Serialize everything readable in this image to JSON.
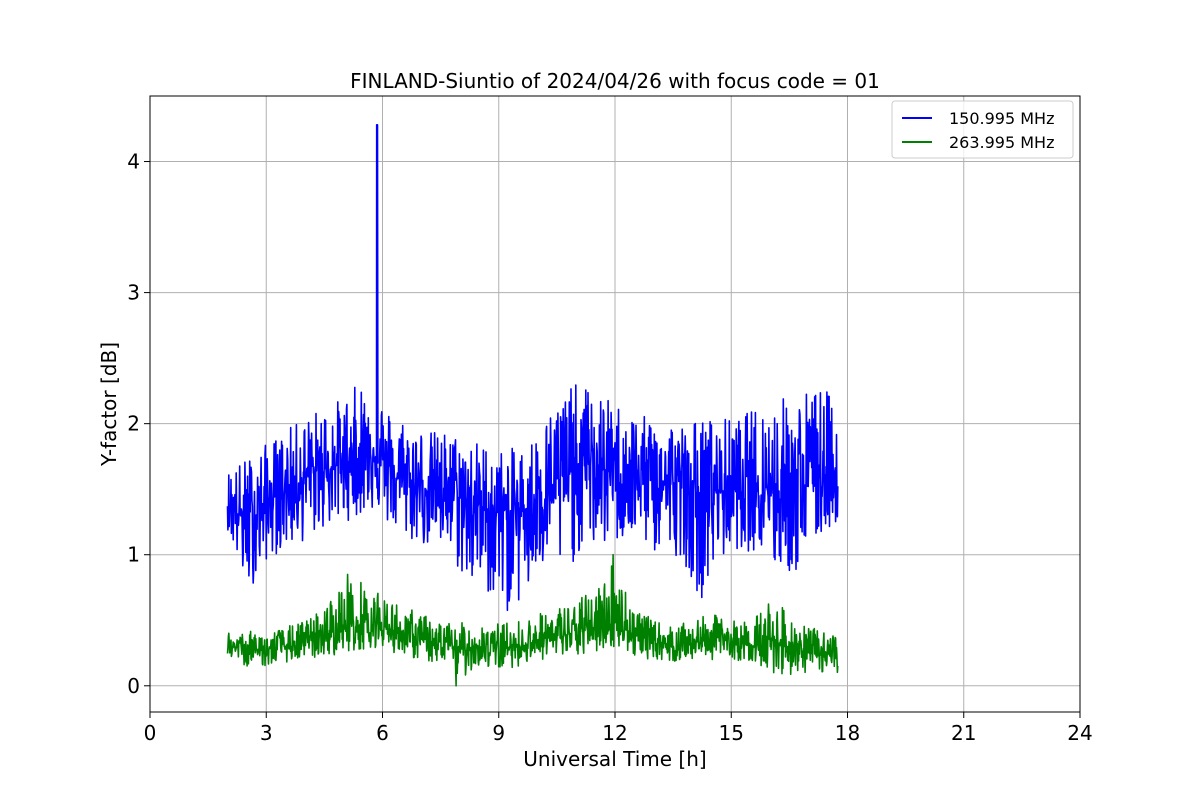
{
  "chart_data": {
    "type": "line",
    "title": "FINLAND-Siuntio of 2024/04/26 with focus code = 01",
    "xlabel": "Universal Time [h]",
    "ylabel": "Y-factor [dB]",
    "xlim": [
      0,
      24
    ],
    "ylim": [
      -0.2,
      4.5
    ],
    "xticks": [
      0,
      3,
      6,
      9,
      12,
      15,
      18,
      21,
      24
    ],
    "yticks": [
      0,
      1,
      2,
      3,
      4
    ],
    "xtick_labels": [
      "0",
      "3",
      "6",
      "9",
      "12",
      "15",
      "18",
      "21",
      "24"
    ],
    "ytick_labels": [
      "0",
      "1",
      "2",
      "3",
      "4"
    ],
    "grid": true,
    "legend_position": "top-right",
    "series": [
      {
        "name": "150.995 MHz",
        "color": "#0000ff",
        "x_range": [
          2.0,
          17.75
        ],
        "spike": {
          "x": 5.85,
          "y": 4.28
        },
        "envelope": {
          "x": [
            2.0,
            2.5,
            3.0,
            3.5,
            4.0,
            4.5,
            5.0,
            5.5,
            5.8,
            6.2,
            6.7,
            7.2,
            7.7,
            8.2,
            8.7,
            9.2,
            9.7,
            10.2,
            10.7,
            11.2,
            11.7,
            12.2,
            12.7,
            13.2,
            13.7,
            14.2,
            14.7,
            15.2,
            15.7,
            16.2,
            16.7,
            17.2,
            17.75
          ],
          "high": [
            1.65,
            1.75,
            1.85,
            1.95,
            2.05,
            2.15,
            2.2,
            2.35,
            2.3,
            2.1,
            2.05,
            1.95,
            1.95,
            1.9,
            1.85,
            1.8,
            1.85,
            2.05,
            2.3,
            2.3,
            2.2,
            2.15,
            2.05,
            2.1,
            2.0,
            2.05,
            2.05,
            2.05,
            2.15,
            2.2,
            2.25,
            2.3,
            2.2
          ],
          "low": [
            1.2,
            0.7,
            0.95,
            1.05,
            1.1,
            1.2,
            1.25,
            1.3,
            1.35,
            1.2,
            1.1,
            1.05,
            1.0,
            0.75,
            0.7,
            0.55,
            0.65,
            0.9,
            0.85,
            1.05,
            1.05,
            1.1,
            1.1,
            0.95,
            1.0,
            0.65,
            0.95,
            1.05,
            1.0,
            0.85,
            0.85,
            1.1,
            1.25
          ],
          "mid": [
            1.4,
            1.25,
            1.4,
            1.5,
            1.6,
            1.65,
            1.7,
            1.75,
            1.8,
            1.6,
            1.55,
            1.5,
            1.5,
            1.4,
            1.35,
            1.3,
            1.35,
            1.5,
            1.6,
            1.7,
            1.65,
            1.6,
            1.6,
            1.55,
            1.55,
            1.45,
            1.5,
            1.5,
            1.55,
            1.5,
            1.5,
            1.6,
            1.65
          ]
        }
      },
      {
        "name": "263.995 MHz",
        "color": "#008000",
        "x_range": [
          2.0,
          17.75
        ],
        "envelope": {
          "x": [
            2.0,
            2.5,
            3.0,
            3.5,
            4.0,
            4.5,
            5.0,
            5.5,
            6.0,
            6.5,
            7.0,
            7.5,
            8.0,
            8.5,
            9.0,
            9.5,
            10.0,
            10.5,
            11.0,
            11.5,
            12.0,
            12.5,
            13.0,
            13.5,
            14.0,
            14.5,
            15.0,
            15.5,
            16.0,
            16.5,
            17.0,
            17.75
          ],
          "high": [
            0.42,
            0.42,
            0.4,
            0.45,
            0.5,
            0.6,
            0.8,
            0.8,
            0.68,
            0.62,
            0.55,
            0.5,
            0.48,
            0.5,
            0.48,
            0.5,
            0.55,
            0.6,
            0.65,
            0.75,
            1.0,
            0.6,
            0.5,
            0.45,
            0.5,
            0.55,
            0.5,
            0.5,
            0.68,
            0.55,
            0.45,
            0.38
          ],
          "low": [
            0.2,
            0.15,
            0.15,
            0.18,
            0.2,
            0.22,
            0.25,
            0.28,
            0.3,
            0.22,
            0.2,
            0.15,
            0.05,
            0.15,
            0.12,
            0.15,
            0.2,
            0.2,
            0.22,
            0.25,
            0.3,
            0.22,
            0.2,
            0.18,
            0.2,
            0.2,
            0.2,
            0.18,
            0.1,
            0.08,
            0.1,
            0.1
          ],
          "mid": [
            0.3,
            0.28,
            0.27,
            0.3,
            0.33,
            0.38,
            0.45,
            0.48,
            0.45,
            0.4,
            0.35,
            0.3,
            0.28,
            0.3,
            0.28,
            0.3,
            0.35,
            0.38,
            0.4,
            0.45,
            0.5,
            0.38,
            0.35,
            0.3,
            0.32,
            0.38,
            0.35,
            0.3,
            0.35,
            0.3,
            0.25,
            0.22
          ]
        },
        "spikes": [
          {
            "x": 7.9,
            "y": 0.0
          },
          {
            "x": 11.95,
            "y": 1.0
          },
          {
            "x": 5.1,
            "y": 0.85
          }
        ]
      }
    ]
  }
}
